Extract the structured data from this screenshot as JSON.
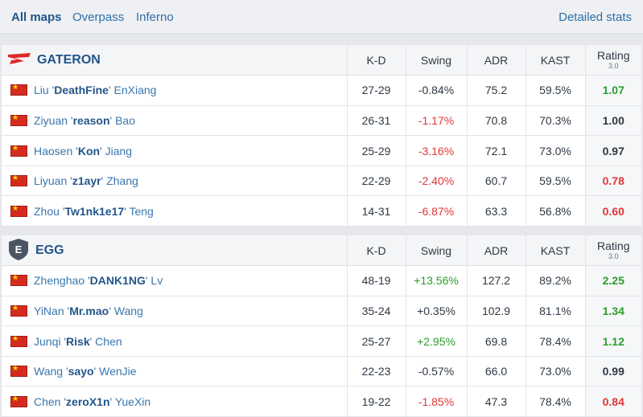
{
  "tabs": [
    {
      "label": "All maps",
      "active": true
    },
    {
      "label": "Overpass",
      "active": false
    },
    {
      "label": "Inferno",
      "active": false
    }
  ],
  "detailed_stats_label": "Detailed stats",
  "columns": {
    "kd": "K-D",
    "swing": "Swing",
    "adr": "ADR",
    "kast": "KAST",
    "rating": "Rating",
    "rating_sub": "3.0"
  },
  "teams": [
    {
      "name": "GATERON",
      "logo": "gateron-logo",
      "players": [
        {
          "first": "Liu",
          "nick": "DeathFine",
          "last": "EnXiang",
          "kd": "27-29",
          "swing": "-0.84%",
          "swing_tone": "neu",
          "adr": "75.2",
          "kast": "59.5%",
          "rating": "1.07",
          "rating_tone": "good"
        },
        {
          "first": "Ziyuan",
          "nick": "reason",
          "last": "Bao",
          "kd": "26-31",
          "swing": "-1.17%",
          "swing_tone": "neg",
          "adr": "70.8",
          "kast": "70.3%",
          "rating": "1.00",
          "rating_tone": "neu"
        },
        {
          "first": "Haosen",
          "nick": "Kon",
          "last": "Jiang",
          "kd": "25-29",
          "swing": "-3.16%",
          "swing_tone": "neg",
          "adr": "72.1",
          "kast": "73.0%",
          "rating": "0.97",
          "rating_tone": "neu"
        },
        {
          "first": "Liyuan",
          "nick": "z1ayr",
          "last": "Zhang",
          "kd": "22-29",
          "swing": "-2.40%",
          "swing_tone": "neg",
          "adr": "60.7",
          "kast": "59.5%",
          "rating": "0.78",
          "rating_tone": "bad"
        },
        {
          "first": "Zhou",
          "nick": "Tw1nk1e17",
          "last": "Teng",
          "kd": "14-31",
          "swing": "-6.87%",
          "swing_tone": "neg",
          "adr": "63.3",
          "kast": "56.8%",
          "rating": "0.60",
          "rating_tone": "bad"
        }
      ]
    },
    {
      "name": "EGG",
      "logo": "egg-logo",
      "logo_letter": "E",
      "players": [
        {
          "first": "Zhenghao",
          "nick": "DANK1NG",
          "last": "Lv",
          "kd": "48-19",
          "swing": "+13.56%",
          "swing_tone": "pos",
          "adr": "127.2",
          "kast": "89.2%",
          "rating": "2.25",
          "rating_tone": "good"
        },
        {
          "first": "YiNan",
          "nick": "Mr.mao",
          "last": "Wang",
          "kd": "35-24",
          "swing": "+0.35%",
          "swing_tone": "neu",
          "adr": "102.9",
          "kast": "81.1%",
          "rating": "1.34",
          "rating_tone": "good"
        },
        {
          "first": "Junqi",
          "nick": "Risk",
          "last": "Chen",
          "kd": "25-27",
          "swing": "+2.95%",
          "swing_tone": "pos",
          "adr": "69.8",
          "kast": "78.4%",
          "rating": "1.12",
          "rating_tone": "good"
        },
        {
          "first": "Wang",
          "nick": "sayo",
          "last": "WenJie",
          "kd": "22-23",
          "swing": "-0.57%",
          "swing_tone": "neu",
          "adr": "66.0",
          "kast": "73.0%",
          "rating": "0.99",
          "rating_tone": "neu"
        },
        {
          "first": "Chen",
          "nick": "zeroX1n",
          "last": "YueXin",
          "kd": "19-22",
          "swing": "-1.85%",
          "swing_tone": "neg",
          "adr": "47.3",
          "kast": "78.4%",
          "rating": "0.84",
          "rating_tone": "bad"
        }
      ]
    }
  ]
}
